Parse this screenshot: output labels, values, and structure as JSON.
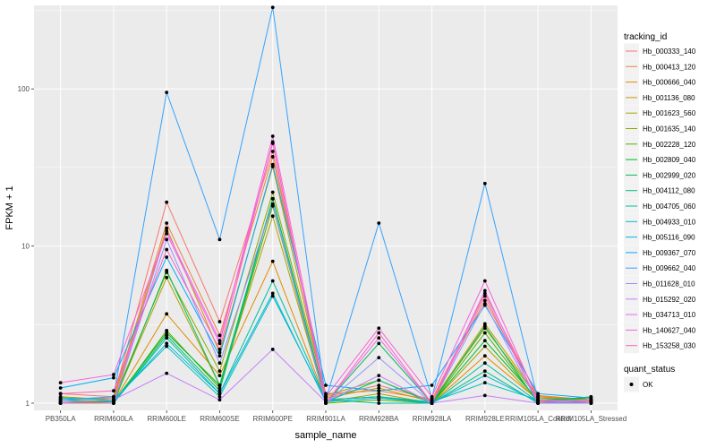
{
  "chart_data": {
    "type": "line",
    "xlabel": "sample_name",
    "ylabel": "FPKM + 1",
    "y_scale": "log10",
    "ylim": [
      0.9,
      340
    ],
    "y_ticks": [
      {
        "value": 1,
        "label": "1"
      },
      {
        "value": 10,
        "label": "10"
      },
      {
        "value": 100,
        "label": "100"
      }
    ],
    "categories": [
      "PB350LA",
      "RRIM600LA",
      "RRIM600LE",
      "RRIM600SE",
      "RRIM600PE",
      "RRIM901LA",
      "RRIM928BA",
      "RRIM928LA",
      "RRIM928LE",
      "RRIM105LA_Control",
      "RRIM105LA_Stressed"
    ],
    "grid": true,
    "legend_position": "right",
    "legend_title": "tracking_id",
    "series": [
      {
        "name": "Hb_000333_140",
        "color": "#F8766D",
        "values": [
          1.15,
          1.1,
          19,
          3.3,
          40,
          1.1,
          1.3,
          1.05,
          5.0,
          1.1,
          1.05
        ]
      },
      {
        "name": "Hb_000413_120",
        "color": "#EE8043",
        "values": [
          1.05,
          1.08,
          14,
          2.7,
          37,
          1.15,
          1.2,
          1.05,
          4.5,
          1.12,
          1.05
        ]
      },
      {
        "name": "Hb_000666_040",
        "color": "#DF8C00",
        "values": [
          1.0,
          1.02,
          3.7,
          1.5,
          8.0,
          1.05,
          1.1,
          1.0,
          2.0,
          1.05,
          1.02
        ]
      },
      {
        "name": "Hb_001136_080",
        "color": "#C99800",
        "values": [
          1.08,
          1.05,
          13,
          2.1,
          32,
          1.08,
          1.25,
          1.02,
          3.2,
          1.1,
          1.05
        ]
      },
      {
        "name": "Hb_001623_560",
        "color": "#AFA100",
        "values": [
          1.02,
          1.02,
          6.3,
          1.3,
          15.5,
          1.02,
          1.15,
          1.0,
          2.3,
          1.03,
          1.03
        ]
      },
      {
        "name": "Hb_001635_140",
        "color": "#8AAB00",
        "values": [
          1.1,
          1.05,
          6.8,
          1.6,
          22,
          1.12,
          1.4,
          1.02,
          3.0,
          1.08,
          1.05
        ]
      },
      {
        "name": "Hb_002228_120",
        "color": "#51B300",
        "values": [
          1.02,
          1.0,
          2.9,
          1.25,
          18,
          1.0,
          1.05,
          1.0,
          2.8,
          1.02,
          1.1
        ]
      },
      {
        "name": "Hb_002809_040",
        "color": "#00B81F",
        "values": [
          1.05,
          1.02,
          2.8,
          1.3,
          20,
          1.05,
          1.1,
          1.0,
          2.5,
          1.05,
          1.08
        ]
      },
      {
        "name": "Hb_002999_020",
        "color": "#00BC56",
        "values": [
          1.0,
          1.0,
          7.0,
          1.3,
          20,
          1.0,
          2.4,
          1.0,
          3.1,
          1.0,
          1.02
        ]
      },
      {
        "name": "Hb_004112_080",
        "color": "#00BF7D",
        "values": [
          1.0,
          1.0,
          2.7,
          1.2,
          20,
          1.02,
          1.4,
          1.0,
          1.6,
          1.0,
          1.02
        ]
      },
      {
        "name": "Hb_004705_060",
        "color": "#00C0A0",
        "values": [
          1.0,
          1.0,
          2.6,
          1.15,
          6.0,
          1.05,
          1.0,
          1.0,
          1.8,
          1.02,
          1.0
        ]
      },
      {
        "name": "Hb_004933_010",
        "color": "#00BEC0",
        "values": [
          1.08,
          1.05,
          2.3,
          1.1,
          4.8,
          1.05,
          1.1,
          1.02,
          1.35,
          1.05,
          1.02
        ]
      },
      {
        "name": "Hb_005116_090",
        "color": "#00B8DD",
        "values": [
          1.05,
          1.03,
          2.4,
          1.15,
          5.0,
          1.02,
          1.08,
          1.0,
          1.5,
          1.02,
          1.0
        ]
      },
      {
        "name": "Hb_009367_070",
        "color": "#00ACFC",
        "values": [
          1.25,
          1.45,
          8.5,
          2.0,
          33,
          1.3,
          1.2,
          1.3,
          4.2,
          1.15,
          1.08
        ]
      },
      {
        "name": "Hb_009662_040",
        "color": "#35A2FF",
        "values": [
          1.05,
          1.1,
          95,
          11,
          330,
          1.05,
          14,
          1.08,
          25,
          1.05,
          1.05
        ]
      },
      {
        "name": "Hb_011628_010",
        "color": "#9590FF",
        "values": [
          1.0,
          1.0,
          11,
          1.8,
          18.5,
          1.0,
          1.95,
          1.0,
          4.3,
          1.0,
          1.0
        ]
      },
      {
        "name": "Hb_015292_020",
        "color": "#C77CFF",
        "values": [
          1.02,
          1.05,
          1.55,
          1.05,
          2.2,
          1.02,
          1.5,
          1.0,
          1.12,
          1.0,
          1.0
        ]
      },
      {
        "name": "Hb_034713_010",
        "color": "#E76BF3",
        "values": [
          1.0,
          1.0,
          12.5,
          2.5,
          45,
          1.0,
          2.6,
          1.0,
          5.2,
          1.0,
          1.0
        ]
      },
      {
        "name": "Hb_140627_040",
        "color": "#FA62DB",
        "values": [
          1.35,
          1.52,
          12,
          2.4,
          50,
          1.1,
          3.0,
          1.1,
          6.0,
          1.05,
          1.02
        ]
      },
      {
        "name": "Hb_153258_030",
        "color": "#FF62BC",
        "values": [
          1.15,
          1.2,
          9.5,
          2.2,
          46,
          1.0,
          2.8,
          1.0,
          4.8,
          1.02,
          1.05
        ]
      }
    ],
    "shape_legend": {
      "title": "quant_status",
      "entries": [
        {
          "label": "OK",
          "shape": "circle",
          "color": "#000000"
        }
      ]
    },
    "panel_background": "#EBEBEB",
    "grid_color": "#FFFFFF"
  }
}
